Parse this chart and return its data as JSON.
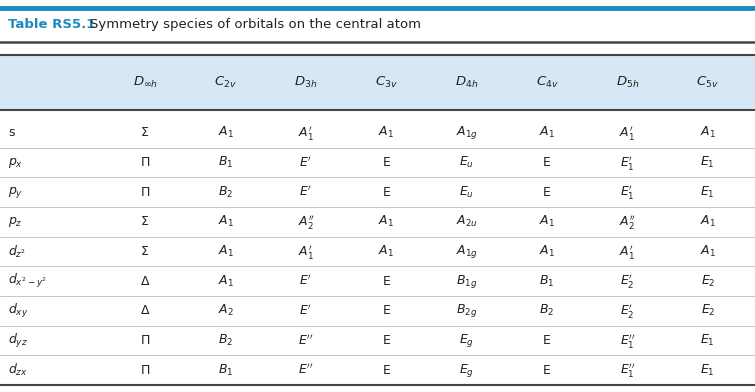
{
  "title_bold": "Table RS5.1",
  "title_normal": "Symmetry species of orbitals on the central atom",
  "title_color": "#1b8bbf",
  "header_bg": "#d6e8f5",
  "col_headers": [
    "$\\mathit{D}_{\\infty h}$",
    "$\\mathit{C}_{2v}$",
    "$\\mathit{D}_{3h}$",
    "$\\mathit{C}_{3v}$",
    "$\\mathit{D}_{4h}$",
    "$\\mathit{C}_{4v}$",
    "$\\mathit{D}_{5h}$",
    "$\\mathit{C}_{5v}$"
  ],
  "row_labels": [
    "s",
    "$p_x$",
    "$p_y$",
    "$p_z$",
    "$d_{z^2}$",
    "$d_{x^2-y^2}$",
    "$d_{xy}$",
    "$d_{yz}$",
    "$d_{zx}$"
  ],
  "data": [
    [
      "Σ",
      "$A_1$",
      "$A_1'$",
      "$A_1$",
      "$A_{1g}$",
      "$A_1$",
      "$A_1'$",
      "$A_1$"
    ],
    [
      "Π",
      "$B_1$",
      "$E'$",
      "E",
      "$E_u$",
      "E",
      "$E_1'$",
      "$E_1$"
    ],
    [
      "Π",
      "$B_2$",
      "$E'$",
      "E",
      "$E_u$",
      "E",
      "$E_1'$",
      "$E_1$"
    ],
    [
      "Σ",
      "$A_1$",
      "$A_2''$",
      "$A_1$",
      "$A_{2u}$",
      "$A_1$",
      "$A_2''$",
      "$A_1$"
    ],
    [
      "Σ",
      "$A_1$",
      "$A_1'$",
      "$A_1$",
      "$A_{1g}$",
      "$A_1$",
      "$A_1'$",
      "$A_1$"
    ],
    [
      "Δ",
      "$A_1$",
      "$E'$",
      "E",
      "$B_{1g}$",
      "$B_1$",
      "$E_2'$",
      "$E_2$"
    ],
    [
      "Δ",
      "$A_2$",
      "$E'$",
      "E",
      "$B_{2g}$",
      "$B_2$",
      "$E_2'$",
      "$E_2$"
    ],
    [
      "Π",
      "$B_2$",
      "$E''$",
      "E",
      "$E_g$",
      "E",
      "$E_1''$",
      "$E_1$"
    ],
    [
      "Π",
      "$B_1$",
      "$E''$",
      "E",
      "$E_g$",
      "E",
      "$E_1''$",
      "$E_1$"
    ]
  ],
  "top_line_color": "#1b8bbf",
  "bg_color": "#ffffff",
  "text_color": "#222222",
  "dark_line_color": "#444444",
  "light_line_color": "#bbbbbb"
}
